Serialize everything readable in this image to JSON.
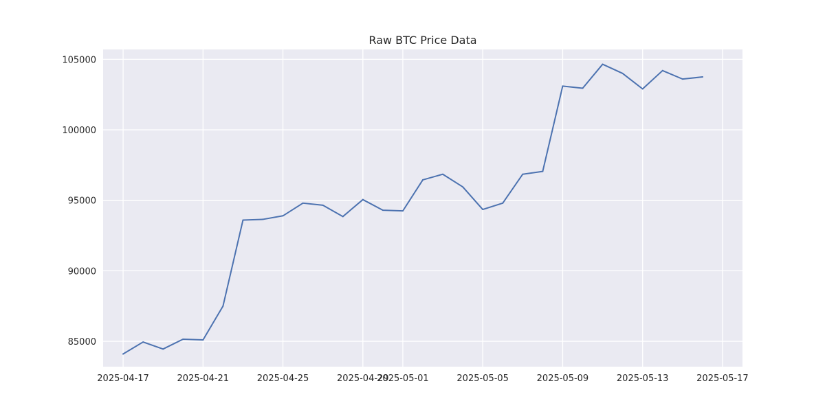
{
  "chart_data": {
    "type": "line",
    "title": "Raw BTC Price Data",
    "xlabel": "",
    "ylabel": "",
    "x_axis_type": "date",
    "xlim": [
      "2025-04-16",
      "2025-05-18"
    ],
    "ylim": [
      83200,
      105700
    ],
    "grid": true,
    "background_color": "#eaeaf2",
    "grid_color": "#ffffff",
    "x_ticks": [
      "2025-04-17",
      "2025-04-21",
      "2025-04-25",
      "2025-04-29",
      "2025-05-01",
      "2025-05-05",
      "2025-05-09",
      "2025-05-13",
      "2025-05-17"
    ],
    "y_ticks": [
      85000,
      90000,
      95000,
      100000,
      105000
    ],
    "series": [
      {
        "color": "#4c72b0",
        "x": [
          "2025-04-17",
          "2025-04-18",
          "2025-04-19",
          "2025-04-20",
          "2025-04-21",
          "2025-04-22",
          "2025-04-23",
          "2025-04-24",
          "2025-04-25",
          "2025-04-26",
          "2025-04-27",
          "2025-04-28",
          "2025-04-29",
          "2025-04-30",
          "2025-05-01",
          "2025-05-02",
          "2025-05-03",
          "2025-05-04",
          "2025-05-05",
          "2025-05-06",
          "2025-05-07",
          "2025-05-08",
          "2025-05-09",
          "2025-05-10",
          "2025-05-11",
          "2025-05-12",
          "2025-05-13",
          "2025-05-14",
          "2025-05-15",
          "2025-05-16"
        ],
        "values": [
          84100,
          84950,
          84450,
          85150,
          85100,
          87500,
          93600,
          93650,
          93900,
          94800,
          94650,
          93850,
          95050,
          94300,
          94250,
          96450,
          96850,
          95950,
          94350,
          94800,
          96850,
          97050,
          103100,
          102950,
          104650,
          104000,
          102900,
          104200,
          103600,
          103750
        ]
      }
    ]
  }
}
